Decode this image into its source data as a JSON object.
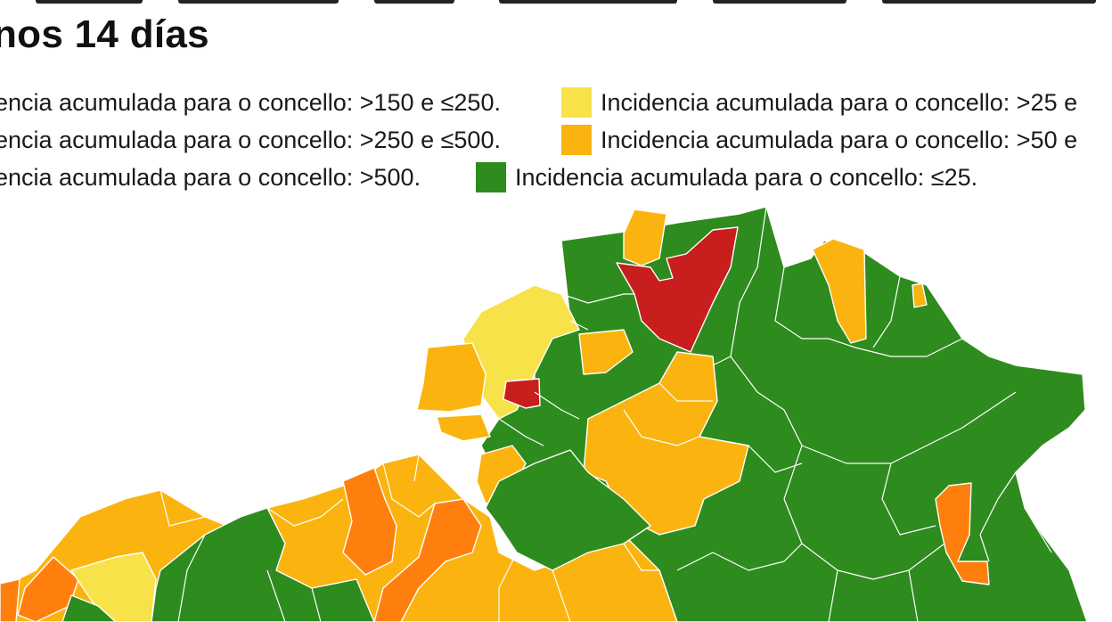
{
  "title": "nos 14 días",
  "colors": {
    "red": "#c81e1e",
    "dark_orange": "#ff7f0e",
    "orange": "#fbb40f",
    "yellow": "#f8e24a",
    "green": "#2e8b1e"
  },
  "legend": [
    {
      "label": "encia acumulada para o concello: >150 e ≤250.",
      "color": "#ff7f0e",
      "swatch": false
    },
    {
      "label": "Incidencia acumulada para o concello: >25 e",
      "color": "#f8e24a",
      "swatch": true
    },
    {
      "label": "encia acumulada para o concello: >250 e ≤500.",
      "color": "#ff7f0e",
      "swatch": false
    },
    {
      "label": "Incidencia acumulada para o concello: >50 e",
      "color": "#fbb40f",
      "swatch": true
    },
    {
      "label": "encia acumulada para o concello: >500.",
      "color": "#c81e1e",
      "swatch": false
    },
    {
      "label": "Incidencia acumulada para o concello: ≤25.",
      "color": "#2e8b1e",
      "swatch": true
    }
  ]
}
